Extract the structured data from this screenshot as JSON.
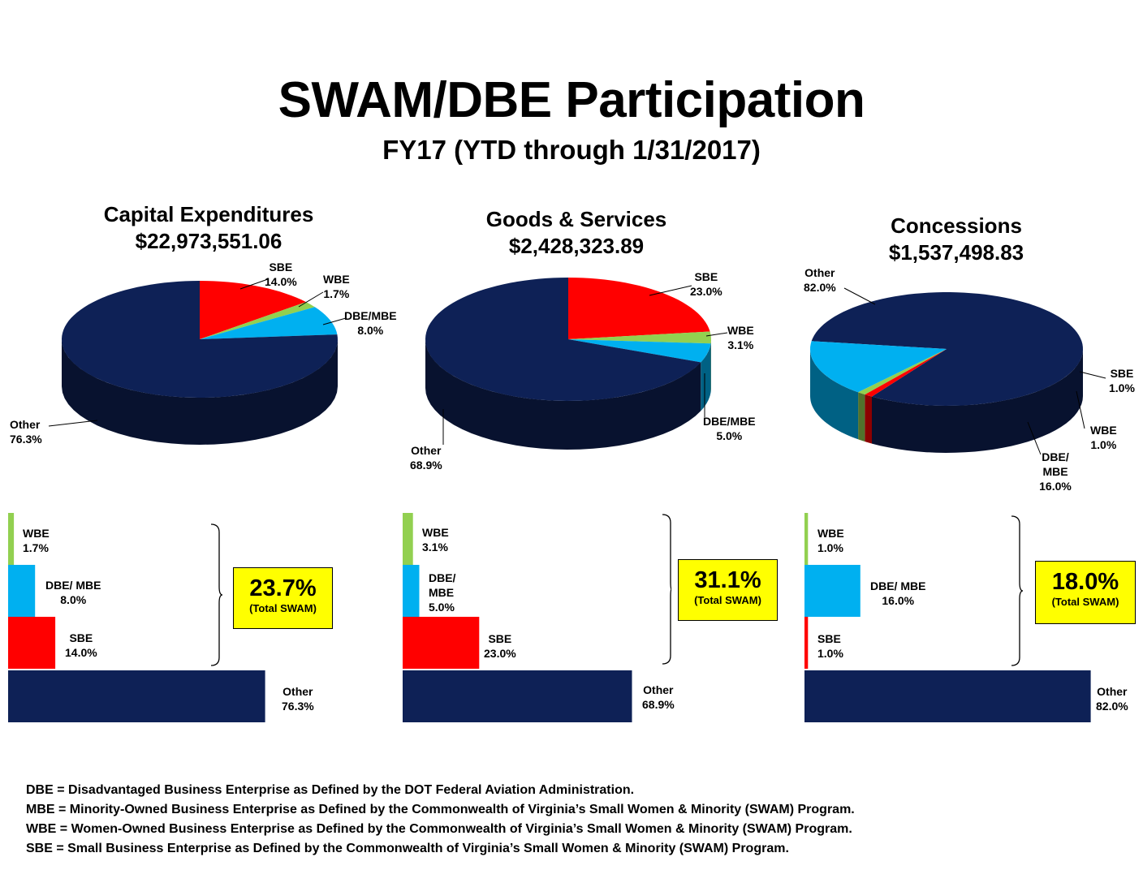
{
  "title": "SWAM/DBE Participation",
  "subtitle": "FY17 (YTD through 1/31/2017)",
  "colors": {
    "other": "#0e2156",
    "sbe": "#ff0000",
    "wbe": "#92d050",
    "dbe": "#00b0f0",
    "highlight": "#ffff00"
  },
  "chart_data": [
    {
      "type": "pie",
      "title": "Capital Expenditures",
      "amount": "$22,973,551.06",
      "slices": [
        {
          "name": "SBE",
          "value": 14.0,
          "label": "14.0%"
        },
        {
          "name": "WBE",
          "value": 1.7,
          "label": "1.7%"
        },
        {
          "name": "DBE/MBE",
          "value": 8.0,
          "label": "8.0%"
        },
        {
          "name": "Other",
          "value": 76.3,
          "label": "76.3%"
        }
      ],
      "bar": {
        "type": "bar",
        "categories": [
          "WBE",
          "DBE/ MBE",
          "SBE",
          "Other"
        ],
        "values": [
          1.7,
          8.0,
          14.0,
          76.3
        ],
        "labels": [
          "1.7%",
          "8.0%",
          "14.0%",
          "76.3%"
        ],
        "total": "23.7%",
        "total_caption": "(Total SWAM)"
      }
    },
    {
      "type": "pie",
      "title": "Goods & Services",
      "amount": "$2,428,323.89",
      "slices": [
        {
          "name": "SBE",
          "value": 23.0,
          "label": "23.0%"
        },
        {
          "name": "WBE",
          "value": 3.1,
          "label": "3.1%"
        },
        {
          "name": "DBE/MBE",
          "value": 5.0,
          "label": "5.0%"
        },
        {
          "name": "Other",
          "value": 68.9,
          "label": "68.9%"
        }
      ],
      "bar": {
        "type": "bar",
        "categories": [
          "WBE",
          "DBE/ MBE",
          "SBE",
          "Other"
        ],
        "values": [
          3.1,
          5.0,
          23.0,
          68.9
        ],
        "labels": [
          "3.1%",
          "5.0%",
          "23.0%",
          "68.9%"
        ],
        "total": "31.1%",
        "total_caption": "(Total SWAM)"
      }
    },
    {
      "type": "pie",
      "title": "Concessions",
      "amount": "$1,537,498.83",
      "slices": [
        {
          "name": "Other",
          "value": 82.0,
          "label": "82.0%"
        },
        {
          "name": "SBE",
          "value": 1.0,
          "label": "1.0%"
        },
        {
          "name": "WBE",
          "value": 1.0,
          "label": "1.0%"
        },
        {
          "name": "DBE/ MBE",
          "value": 16.0,
          "label": "16.0%"
        }
      ],
      "bar": {
        "type": "bar",
        "categories": [
          "WBE",
          "DBE/ MBE",
          "SBE",
          "Other"
        ],
        "values": [
          1.0,
          16.0,
          1.0,
          82.0
        ],
        "labels": [
          "1.0%",
          "16.0%",
          "1.0%",
          "82.0%"
        ],
        "total": "18.0%",
        "total_caption": "(Total SWAM)"
      }
    }
  ],
  "notes": [
    "DBE = Disadvantaged Business Enterprise as Defined by the DOT Federal Aviation Administration.",
    "MBE = Minority-Owned Business Enterprise as Defined by the Commonwealth of Virginia’s Small Women & Minority (SWAM) Program.",
    "WBE = Women-Owned Business Enterprise as Defined by the Commonwealth of Virginia’s Small Women & Minority (SWAM) Program.",
    "SBE = Small Business Enterprise as Defined by the Commonwealth of Virginia’s Small Women & Minority (SWAM) Program."
  ]
}
